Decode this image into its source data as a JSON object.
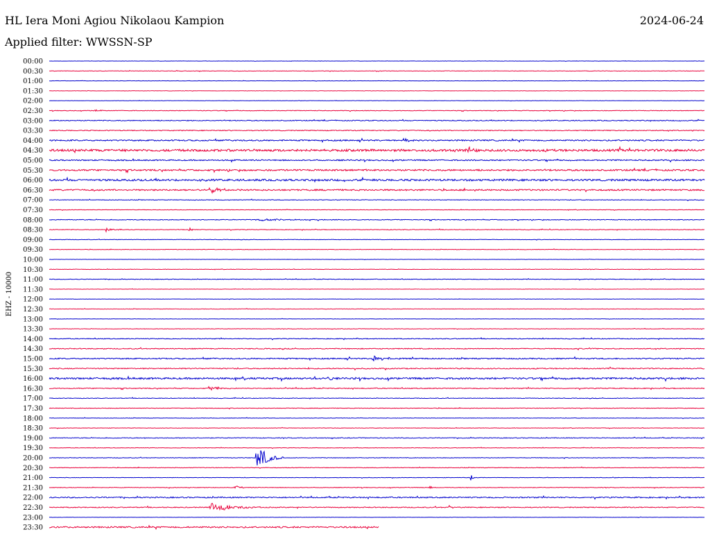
{
  "header": {
    "station": "HL Iera Moni Agiou Nikolaou Kampion",
    "date": "2024-06-24",
    "filter_label": "Applied filter: WWSSN-SP"
  },
  "colors": {
    "trace_a": "#0000cc",
    "trace_b": "#e8003a"
  },
  "chart_data": {
    "type": "line",
    "title": "HL Iera Moni Agiou Nikolaou Kampion",
    "ylabel": "EHZ - 10000",
    "xlabel": "",
    "grid": false,
    "legend": "none",
    "xlim_minutes": [
      0,
      30
    ],
    "rows": [
      "00:00",
      "00:30",
      "01:00",
      "01:30",
      "02:00",
      "02:30",
      "03:00",
      "03:30",
      "04:00",
      "04:30",
      "05:00",
      "05:30",
      "06:00",
      "06:30",
      "07:00",
      "07:30",
      "08:00",
      "08:30",
      "09:00",
      "09:30",
      "10:00",
      "10:30",
      "11:00",
      "11:30",
      "12:00",
      "12:30",
      "13:00",
      "13:30",
      "14:00",
      "14:30",
      "15:00",
      "15:30",
      "16:00",
      "16:30",
      "17:00",
      "17:30",
      "18:00",
      "18:30",
      "19:00",
      "19:30",
      "20:00",
      "20:30",
      "21:00",
      "21:30",
      "22:00",
      "22:30",
      "23:00",
      "23:30"
    ],
    "data_end_minute": 15.1,
    "noise_levels": [
      0.2,
      0.3,
      0.2,
      0.2,
      0.2,
      0.4,
      0.6,
      0.6,
      0.9,
      1.6,
      0.8,
      1.1,
      1.3,
      1.0,
      0.4,
      0.3,
      0.5,
      0.4,
      0.3,
      0.3,
      0.2,
      0.3,
      0.4,
      0.2,
      0.2,
      0.3,
      0.2,
      0.3,
      0.5,
      0.6,
      0.8,
      0.7,
      1.2,
      0.6,
      0.4,
      0.4,
      0.3,
      0.3,
      0.5,
      0.3,
      0.4,
      0.4,
      0.3,
      0.4,
      0.8,
      0.6,
      0.2,
      1.0
    ],
    "events": [
      {
        "row": "02:30",
        "minute": 2.0,
        "amplitude": 2,
        "duration_min": 0.7
      },
      {
        "row": "04:00",
        "minute": 16.2,
        "amplitude": 3,
        "duration_min": 1.2
      },
      {
        "row": "04:30",
        "minute": 19.1,
        "amplitude": 9,
        "duration_min": 0.5
      },
      {
        "row": "05:00",
        "minute": 8.3,
        "amplitude": 3,
        "duration_min": 0.3
      },
      {
        "row": "06:30",
        "minute": 7.3,
        "amplitude": 5,
        "duration_min": 1.5
      },
      {
        "row": "08:00",
        "minute": 9.5,
        "amplitude": 2,
        "duration_min": 2.5
      },
      {
        "row": "08:30",
        "minute": 2.6,
        "amplitude": 3,
        "duration_min": 1.3
      },
      {
        "row": "08:30",
        "minute": 6.4,
        "amplitude": 5,
        "duration_min": 0.3
      },
      {
        "row": "15:00",
        "minute": 14.8,
        "amplitude": 5,
        "duration_min": 1.5
      },
      {
        "row": "16:00",
        "minute": 12.8,
        "amplitude": 9,
        "duration_min": 0.3
      },
      {
        "row": "16:30",
        "minute": 7.3,
        "amplitude": 3,
        "duration_min": 1.5
      },
      {
        "row": "20:00",
        "minute": 9.5,
        "amplitude": 22,
        "duration_min": 1.2
      },
      {
        "row": "21:00",
        "minute": 19.3,
        "amplitude": 5,
        "duration_min": 0.3
      },
      {
        "row": "21:30",
        "minute": 8.5,
        "amplitude": 4,
        "duration_min": 0.4
      },
      {
        "row": "21:30",
        "minute": 17.4,
        "amplitude": 3,
        "duration_min": 0.3
      },
      {
        "row": "22:30",
        "minute": 7.4,
        "amplitude": 7,
        "duration_min": 2.5
      },
      {
        "row": "22:30",
        "minute": 18.3,
        "amplitude": 3,
        "duration_min": 0.6
      },
      {
        "row": "14:30",
        "minute": 24.7,
        "amplitude": 3,
        "duration_min": 0.3
      },
      {
        "row": "04:30",
        "minute": 26.5,
        "amplitude": 4,
        "duration_min": 0.4
      }
    ]
  }
}
